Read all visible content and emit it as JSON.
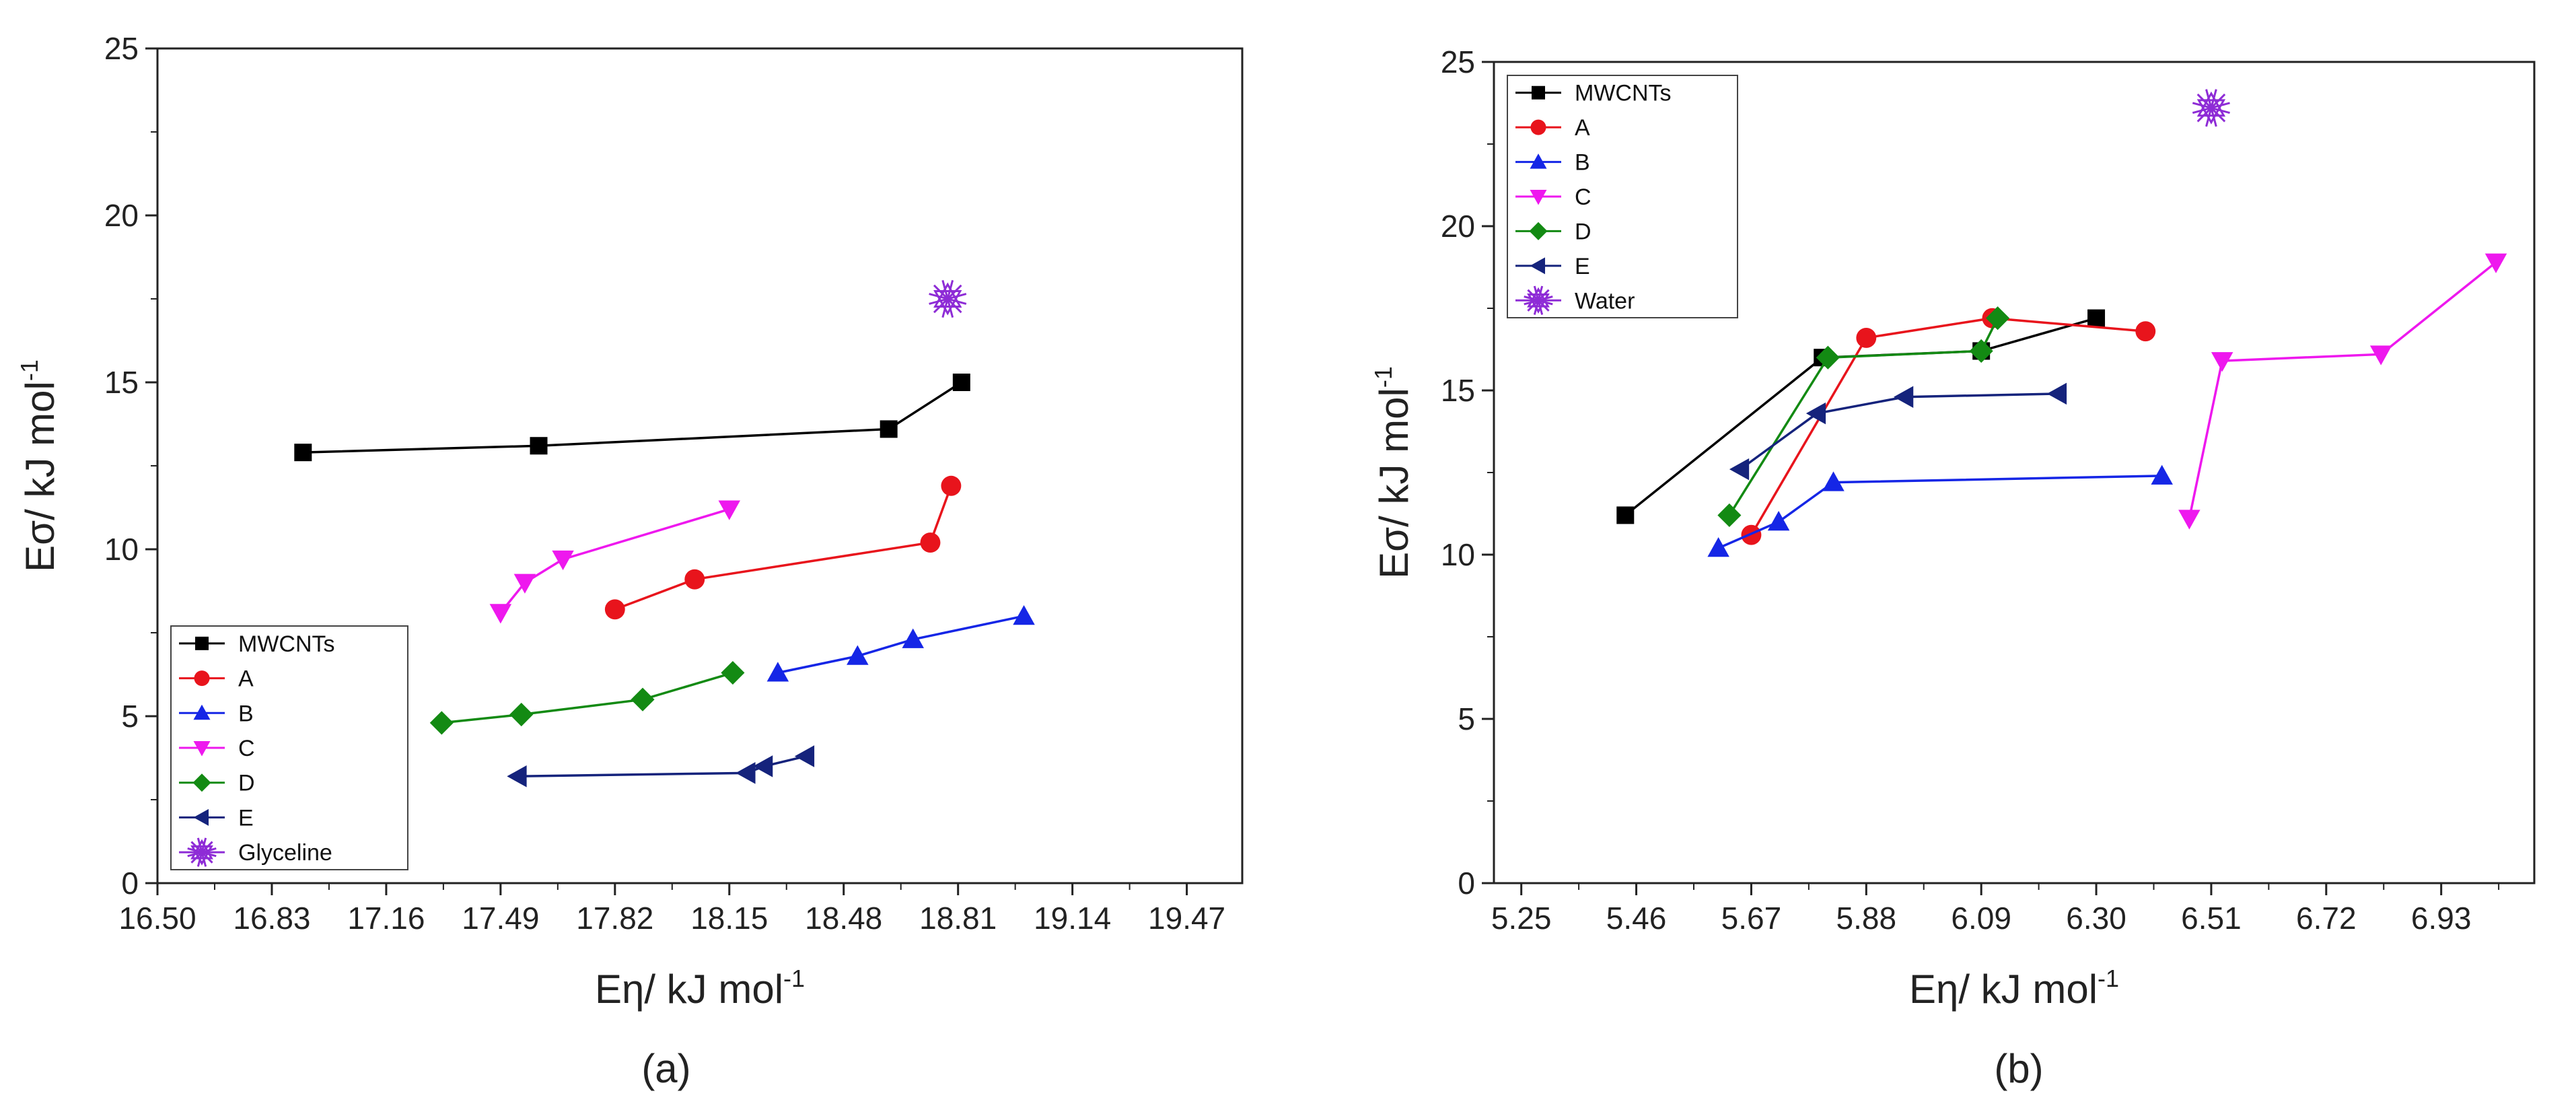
{
  "chart_data": [
    {
      "type": "line",
      "panel": "(a)",
      "caption": "(a)",
      "xlabel": "Eη/ kJ mol",
      "xlabel_exp": "-1",
      "ylabel": "Eσ/ kJ mol",
      "ylabel_exp": "-1",
      "xlim": [
        16.5,
        19.63
      ],
      "ylim": [
        0,
        25
      ],
      "xticks": [
        16.5,
        16.83,
        17.16,
        17.49,
        17.82,
        18.15,
        18.48,
        18.81,
        19.14,
        19.47
      ],
      "xtick_labels": [
        "16.50",
        "16.83",
        "17.16",
        "17.49",
        "17.82",
        "18.15",
        "18.48",
        "18.81",
        "19.14",
        "19.47"
      ],
      "yticks": [
        0,
        5,
        10,
        15,
        20,
        25
      ],
      "ytick_labels": [
        "0",
        "5",
        "10",
        "15",
        "20",
        "25"
      ],
      "legend_position": "bottom-left",
      "series": [
        {
          "name": "MWCNTs",
          "color": "#000000",
          "marker": "square",
          "x": [
            16.92,
            17.6,
            18.61,
            18.82
          ],
          "y": [
            12.9,
            13.1,
            13.6,
            15.0
          ]
        },
        {
          "name": "A",
          "color": "#e8141c",
          "marker": "circle",
          "x": [
            17.82,
            18.05,
            18.73,
            18.79
          ],
          "y": [
            8.2,
            9.1,
            10.2,
            11.9
          ]
        },
        {
          "name": "B",
          "color": "#1526e6",
          "marker": "triangle-up",
          "x": [
            18.29,
            18.52,
            18.68,
            19.0
          ],
          "y": [
            6.3,
            6.8,
            7.3,
            8.0
          ]
        },
        {
          "name": "C",
          "color": "#ee18ee",
          "marker": "triangle-down",
          "x": [
            17.49,
            17.56,
            17.67,
            18.15
          ],
          "y": [
            8.1,
            9.0,
            9.7,
            11.2
          ]
        },
        {
          "name": "D",
          "color": "#138a13",
          "marker": "diamond",
          "x": [
            17.32,
            17.55,
            17.9,
            18.16
          ],
          "y": [
            4.8,
            5.05,
            5.5,
            6.3
          ]
        },
        {
          "name": "E",
          "color": "#15237c",
          "marker": "triangle-left",
          "x": [
            17.54,
            18.2,
            18.25,
            18.37
          ],
          "y": [
            3.2,
            3.3,
            3.5,
            3.8
          ]
        },
        {
          "name": "Glyceline",
          "color": "#8e2cd6",
          "marker": "star-x",
          "x": [
            18.78
          ],
          "y": [
            17.5
          ]
        }
      ]
    },
    {
      "type": "line",
      "panel": "(b)",
      "caption": "(b)",
      "xlabel": "Eη/ kJ mol",
      "xlabel_exp": "-1",
      "ylabel": "Eσ/ kJ mol",
      "ylabel_exp": "-1",
      "xlim": [
        5.2,
        7.1
      ],
      "ylim": [
        0,
        25
      ],
      "xticks": [
        5.25,
        5.46,
        5.67,
        5.88,
        6.09,
        6.3,
        6.51,
        6.72,
        6.93
      ],
      "xtick_labels": [
        "5.25",
        "5.46",
        "5.67",
        "5.88",
        "6.09",
        "6.30",
        "6.51",
        "6.72",
        "6.93"
      ],
      "yticks": [
        0,
        5,
        10,
        15,
        20,
        25
      ],
      "ytick_labels": [
        "0",
        "5",
        "10",
        "15",
        "20",
        "25"
      ],
      "legend_position": "top-left",
      "series": [
        {
          "name": "MWCNTs",
          "color": "#000000",
          "marker": "square",
          "x": [
            5.44,
            5.8,
            6.09,
            6.3
          ],
          "y": [
            11.2,
            16.0,
            16.2,
            17.2
          ]
        },
        {
          "name": "A",
          "color": "#e8141c",
          "marker": "circle",
          "x": [
            5.67,
            5.88,
            6.11,
            6.39
          ],
          "y": [
            10.6,
            16.6,
            17.2,
            16.8
          ]
        },
        {
          "name": "B",
          "color": "#1526e6",
          "marker": "triangle-up",
          "x": [
            5.61,
            5.72,
            5.82,
            6.42
          ],
          "y": [
            10.2,
            11.0,
            12.2,
            12.4
          ]
        },
        {
          "name": "C",
          "color": "#ee18ee",
          "marker": "triangle-down",
          "x": [
            6.47,
            6.53,
            6.82,
            7.03
          ],
          "y": [
            11.1,
            15.9,
            16.1,
            18.9
          ]
        },
        {
          "name": "D",
          "color": "#138a13",
          "marker": "diamond",
          "x": [
            5.63,
            5.81,
            6.09,
            6.12
          ],
          "y": [
            11.2,
            16.0,
            16.2,
            17.2
          ]
        },
        {
          "name": "E",
          "color": "#15237c",
          "marker": "triangle-left",
          "x": [
            5.65,
            5.79,
            5.95,
            6.23
          ],
          "y": [
            12.6,
            14.3,
            14.8,
            14.9
          ]
        },
        {
          "name": "Water",
          "color": "#8e2cd6",
          "marker": "star-x",
          "x": [
            6.51
          ],
          "y": [
            23.6
          ]
        }
      ]
    }
  ]
}
